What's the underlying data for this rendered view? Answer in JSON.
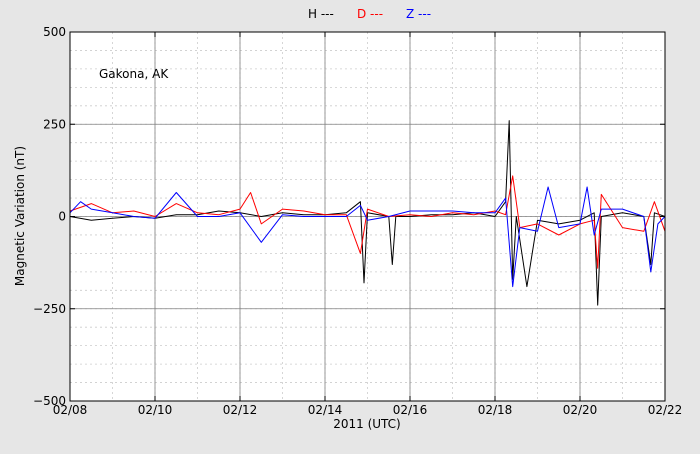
{
  "chart_data": {
    "type": "line",
    "title": "",
    "annotation": "Gakona, AK",
    "xlabel": "2011 (UTC)",
    "ylabel": "Magnetic Variation (nT)",
    "xlim": [
      "2011-02-08",
      "2011-02-22"
    ],
    "ylim": [
      -500,
      500
    ],
    "x_ticks": [
      "02/08",
      "02/10",
      "02/12",
      "02/14",
      "02/16",
      "02/18",
      "02/20",
      "02/22"
    ],
    "y_ticks": [
      {
        "value": 500,
        "label": "500"
      },
      {
        "value": 250,
        "label": "250"
      },
      {
        "value": 0,
        "label": "0"
      },
      {
        "value": -250,
        "label": "−250"
      },
      {
        "value": -500,
        "label": "−500"
      }
    ],
    "grid": true,
    "legend_position": "top-center",
    "series": [
      {
        "name": "H ---",
        "color": "#000000",
        "x": [
          "2011-02-08",
          "2011-02-08T12:00",
          "2011-02-09",
          "2011-02-09T12:00",
          "2011-02-10",
          "2011-02-10T12:00",
          "2011-02-11",
          "2011-02-11T12:00",
          "2011-02-12",
          "2011-02-12T12:00",
          "2011-02-13",
          "2011-02-13T12:00",
          "2011-02-14",
          "2011-02-14T12:00",
          "2011-02-14T20:00",
          "2011-02-14T22:00",
          "2011-02-15",
          "2011-02-15T12:00",
          "2011-02-15T14:00",
          "2011-02-15T16:00",
          "2011-02-16",
          "2011-02-16T12:00",
          "2011-02-17",
          "2011-02-17T12:00",
          "2011-02-18",
          "2011-02-18T06:00",
          "2011-02-18T08:00",
          "2011-02-18T10:00",
          "2011-02-18T12:00",
          "2011-02-18T18:00",
          "2011-02-19",
          "2011-02-19T12:00",
          "2011-02-20",
          "2011-02-20T08:00",
          "2011-02-20T10:00",
          "2011-02-20T12:00",
          "2011-02-21",
          "2011-02-21T12:00",
          "2011-02-21T16:00",
          "2011-02-21T18:00",
          "2011-02-22"
        ],
        "values": [
          0,
          -10,
          -5,
          0,
          -5,
          5,
          5,
          15,
          10,
          0,
          10,
          5,
          5,
          10,
          40,
          -180,
          10,
          0,
          -130,
          0,
          0,
          5,
          5,
          10,
          0,
          40,
          260,
          -170,
          0,
          -190,
          -10,
          -20,
          -10,
          10,
          -240,
          0,
          10,
          0,
          -130,
          10,
          0
        ]
      },
      {
        "name": "D ---",
        "color": "#ff0000",
        "x": [
          "2011-02-08",
          "2011-02-08T12:00",
          "2011-02-09",
          "2011-02-09T12:00",
          "2011-02-10",
          "2011-02-10T12:00",
          "2011-02-11",
          "2011-02-11T12:00",
          "2011-02-12",
          "2011-02-12T06:00",
          "2011-02-12T12:00",
          "2011-02-13",
          "2011-02-13T12:00",
          "2011-02-14",
          "2011-02-14T12:00",
          "2011-02-14T20:00",
          "2011-02-15",
          "2011-02-15T12:00",
          "2011-02-16",
          "2011-02-16T12:00",
          "2011-02-17",
          "2011-02-17T12:00",
          "2011-02-18",
          "2011-02-18T06:00",
          "2011-02-18T10:00",
          "2011-02-18T14:00",
          "2011-02-19",
          "2011-02-19T12:00",
          "2011-02-20",
          "2011-02-20T08:00",
          "2011-02-20T10:00",
          "2011-02-20T12:00",
          "2011-02-21",
          "2011-02-21T12:00",
          "2011-02-21T18:00",
          "2011-02-22"
        ],
        "values": [
          15,
          35,
          10,
          15,
          0,
          35,
          10,
          5,
          20,
          65,
          -20,
          20,
          15,
          5,
          5,
          -100,
          20,
          0,
          5,
          0,
          10,
          5,
          15,
          5,
          110,
          -30,
          -20,
          -50,
          -20,
          -10,
          -140,
          60,
          -30,
          -40,
          40,
          -40
        ]
      },
      {
        "name": "Z ---",
        "color": "#0000ff",
        "x": [
          "2011-02-08",
          "2011-02-08T06:00",
          "2011-02-08T12:00",
          "2011-02-09",
          "2011-02-09T12:00",
          "2011-02-10",
          "2011-02-10T12:00",
          "2011-02-11",
          "2011-02-11T12:00",
          "2011-02-12",
          "2011-02-12T12:00",
          "2011-02-13",
          "2011-02-13T12:00",
          "2011-02-14",
          "2011-02-14T12:00",
          "2011-02-14T20:00",
          "2011-02-15",
          "2011-02-15T12:00",
          "2011-02-16",
          "2011-02-16T12:00",
          "2011-02-17",
          "2011-02-17T12:00",
          "2011-02-18",
          "2011-02-18T06:00",
          "2011-02-18T10:00",
          "2011-02-18T14:00",
          "2011-02-19",
          "2011-02-19T06:00",
          "2011-02-19T12:00",
          "2011-02-20",
          "2011-02-20T04:00",
          "2011-02-20T08:00",
          "2011-02-20T12:00",
          "2011-02-21",
          "2011-02-21T12:00",
          "2011-02-21T16:00",
          "2011-02-21T20:00",
          "2011-02-22"
        ],
        "values": [
          10,
          40,
          20,
          10,
          0,
          -5,
          65,
          0,
          0,
          10,
          -70,
          5,
          0,
          0,
          0,
          30,
          -10,
          0,
          15,
          15,
          15,
          10,
          10,
          50,
          -190,
          -30,
          -40,
          80,
          -30,
          -20,
          80,
          -50,
          20,
          20,
          0,
          -150,
          -20,
          0
        ]
      }
    ]
  }
}
